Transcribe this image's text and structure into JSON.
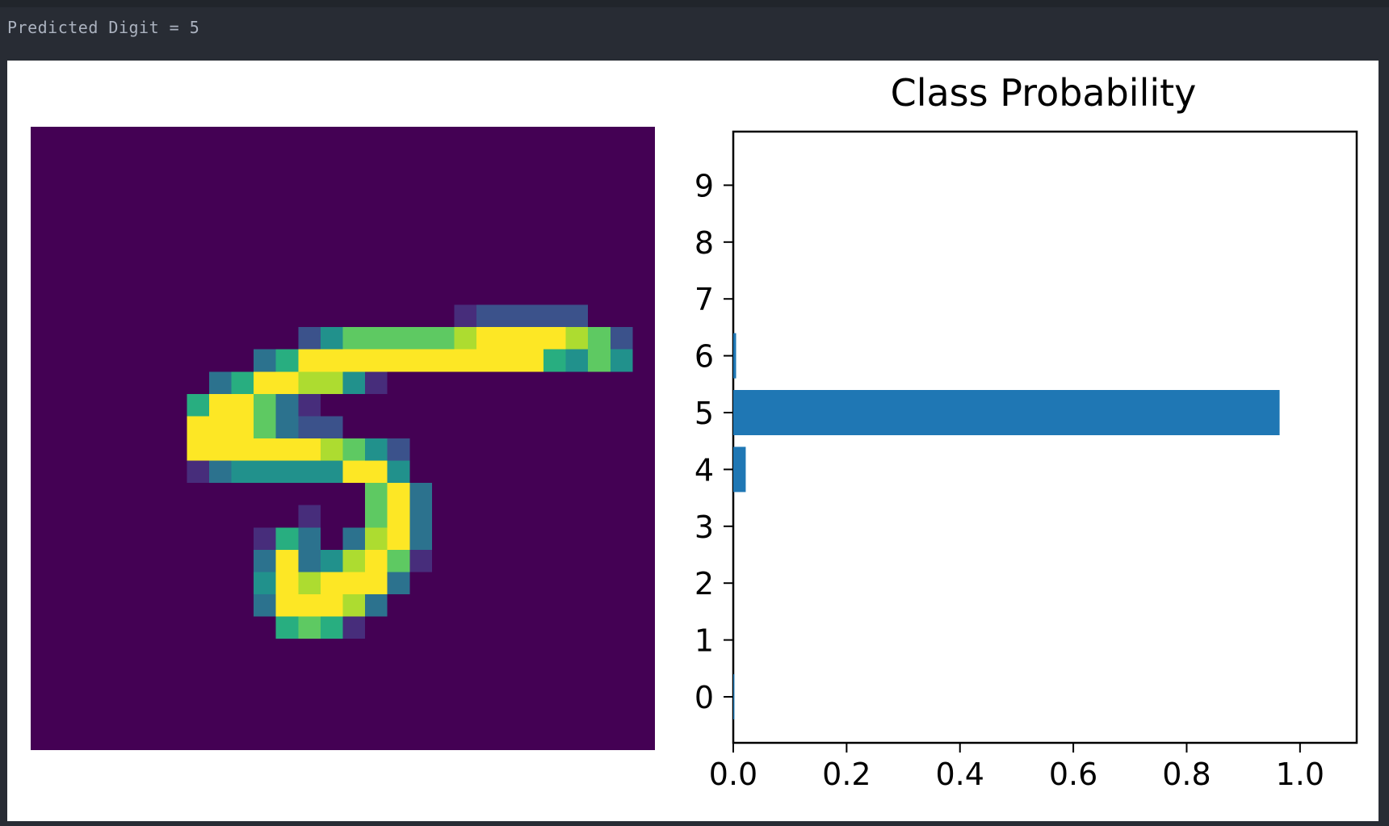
{
  "notebook": {
    "output_text": "Predicted Digit = 5"
  },
  "image_panel": {
    "description_icon": "mnist-digit-heatmap",
    "colormap": "viridis",
    "background_color": "#440154",
    "grid_size": 28
  },
  "chart_data": {
    "type": "bar",
    "orientation": "horizontal",
    "title": "Class Probability",
    "xlabel": "",
    "ylabel": "",
    "categories": [
      "0",
      "1",
      "2",
      "3",
      "4",
      "5",
      "6",
      "7",
      "8",
      "9"
    ],
    "values": [
      0.002,
      0.0,
      0.0,
      0.0,
      0.022,
      0.964,
      0.005,
      0.0,
      0.0,
      0.0
    ],
    "xlim": [
      0,
      1.1
    ],
    "xticks": [
      "0.0",
      "0.2",
      "0.4",
      "0.6",
      "0.8",
      "1.0"
    ],
    "bar_color": "#1f77b4",
    "grid": false,
    "legend": "none"
  }
}
